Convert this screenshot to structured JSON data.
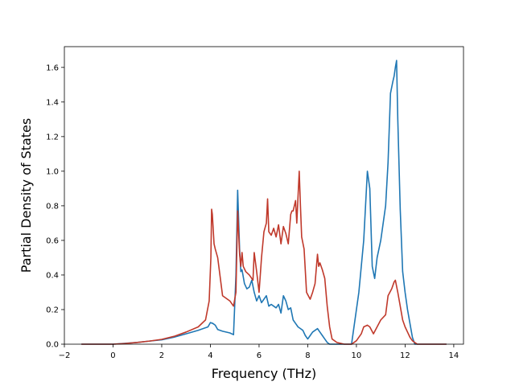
{
  "chart_data": {
    "type": "line",
    "title": "",
    "xlabel": "Frequency (THz)",
    "ylabel": "Partial Density of States",
    "xlim": [
      -2,
      14.4
    ],
    "ylim": [
      0,
      1.72
    ],
    "x_ticks": [
      -2,
      0,
      2,
      4,
      6,
      8,
      10,
      12,
      14
    ],
    "y_ticks": [
      0.0,
      0.2,
      0.4,
      0.6,
      0.8,
      1.0,
      1.2,
      1.4,
      1.6
    ],
    "x_tick_labels": [
      "−2",
      "0",
      "2",
      "4",
      "6",
      "8",
      "10",
      "12",
      "14"
    ],
    "y_tick_labels": [
      "0.0",
      "0.2",
      "0.4",
      "0.6",
      "0.8",
      "1.0",
      "1.2",
      "1.4",
      "1.6"
    ],
    "grid": false,
    "legend": "none",
    "series": [
      {
        "color": "#1f77b4",
        "x": [
          -1.3,
          0,
          0.5,
          1,
          1.5,
          2,
          2.5,
          3,
          3.5,
          3.9,
          4.0,
          4.1,
          4.2,
          4.3,
          4.5,
          4.8,
          4.95,
          5.05,
          5.12,
          5.2,
          5.25,
          5.3,
          5.4,
          5.5,
          5.6,
          5.7,
          5.8,
          5.9,
          6.0,
          6.1,
          6.2,
          6.3,
          6.4,
          6.5,
          6.6,
          6.7,
          6.8,
          6.9,
          7.0,
          7.1,
          7.2,
          7.3,
          7.4,
          7.5,
          7.6,
          7.7,
          7.8,
          7.9,
          8.0,
          8.1,
          8.2,
          8.3,
          8.4,
          8.5,
          8.6,
          8.7,
          8.8,
          8.9,
          9.0,
          9.2,
          9.5,
          9.8,
          9.9,
          10.0,
          10.1,
          10.2,
          10.3,
          10.45,
          10.55,
          10.65,
          10.75,
          10.85,
          11.0,
          11.1,
          11.2,
          11.3,
          11.4,
          11.5,
          11.55,
          11.6,
          11.65,
          11.7,
          11.8,
          11.9,
          12.0,
          12.1,
          12.2,
          12.3,
          12.4,
          12.5,
          13.7
        ],
        "y": [
          0.0,
          0.0,
          0.005,
          0.01,
          0.018,
          0.025,
          0.04,
          0.06,
          0.08,
          0.1,
          0.125,
          0.12,
          0.11,
          0.085,
          0.075,
          0.065,
          0.055,
          0.4,
          0.89,
          0.55,
          0.42,
          0.43,
          0.35,
          0.32,
          0.33,
          0.37,
          0.3,
          0.25,
          0.28,
          0.24,
          0.26,
          0.28,
          0.22,
          0.23,
          0.22,
          0.21,
          0.23,
          0.18,
          0.28,
          0.25,
          0.2,
          0.21,
          0.14,
          0.12,
          0.1,
          0.09,
          0.08,
          0.05,
          0.03,
          0.05,
          0.07,
          0.08,
          0.09,
          0.07,
          0.05,
          0.03,
          0.01,
          0.0,
          0.0,
          0.0,
          0.0,
          0.0,
          0.1,
          0.2,
          0.3,
          0.45,
          0.6,
          1.0,
          0.9,
          0.45,
          0.38,
          0.5,
          0.6,
          0.7,
          0.8,
          1.05,
          1.45,
          1.52,
          1.55,
          1.6,
          1.64,
          1.3,
          0.78,
          0.42,
          0.3,
          0.2,
          0.12,
          0.04,
          0.0,
          0.0,
          0.0
        ]
      },
      {
        "color": "#c0392b",
        "x": [
          -1.3,
          0,
          0.5,
          1,
          1.5,
          2,
          2.5,
          3,
          3.5,
          3.8,
          3.95,
          4.02,
          4.05,
          4.08,
          4.15,
          4.2,
          4.3,
          4.5,
          4.8,
          4.95,
          5.05,
          5.12,
          5.2,
          5.25,
          5.3,
          5.35,
          5.45,
          5.6,
          5.75,
          5.8,
          5.9,
          6.0,
          6.1,
          6.2,
          6.3,
          6.35,
          6.4,
          6.5,
          6.6,
          6.7,
          6.8,
          6.9,
          7.0,
          7.1,
          7.2,
          7.3,
          7.35,
          7.4,
          7.5,
          7.55,
          7.65,
          7.7,
          7.75,
          7.85,
          7.95,
          8.1,
          8.2,
          8.3,
          8.4,
          8.45,
          8.5,
          8.6,
          8.7,
          8.8,
          8.9,
          9.0,
          9.2,
          9.5,
          9.8,
          10.0,
          10.2,
          10.3,
          10.45,
          10.55,
          10.7,
          10.85,
          11.0,
          11.2,
          11.3,
          11.45,
          11.55,
          11.6,
          11.7,
          11.8,
          11.9,
          12.0,
          12.1,
          12.2,
          12.3,
          12.4,
          12.5,
          13.7
        ],
        "y": [
          0.0,
          0.0,
          0.004,
          0.01,
          0.018,
          0.028,
          0.045,
          0.07,
          0.1,
          0.14,
          0.25,
          0.5,
          0.78,
          0.75,
          0.58,
          0.55,
          0.5,
          0.28,
          0.25,
          0.22,
          0.3,
          0.77,
          0.52,
          0.45,
          0.53,
          0.45,
          0.42,
          0.4,
          0.37,
          0.53,
          0.42,
          0.3,
          0.5,
          0.65,
          0.7,
          0.84,
          0.65,
          0.63,
          0.67,
          0.62,
          0.69,
          0.58,
          0.68,
          0.64,
          0.58,
          0.75,
          0.77,
          0.77,
          0.83,
          0.7,
          1.0,
          0.8,
          0.62,
          0.55,
          0.3,
          0.26,
          0.3,
          0.35,
          0.52,
          0.45,
          0.47,
          0.43,
          0.38,
          0.22,
          0.1,
          0.03,
          0.01,
          0.0,
          0.0,
          0.02,
          0.06,
          0.1,
          0.11,
          0.1,
          0.06,
          0.1,
          0.14,
          0.17,
          0.28,
          0.32,
          0.36,
          0.37,
          0.3,
          0.22,
          0.14,
          0.1,
          0.07,
          0.04,
          0.02,
          0.01,
          0.0,
          0.0
        ]
      }
    ]
  }
}
